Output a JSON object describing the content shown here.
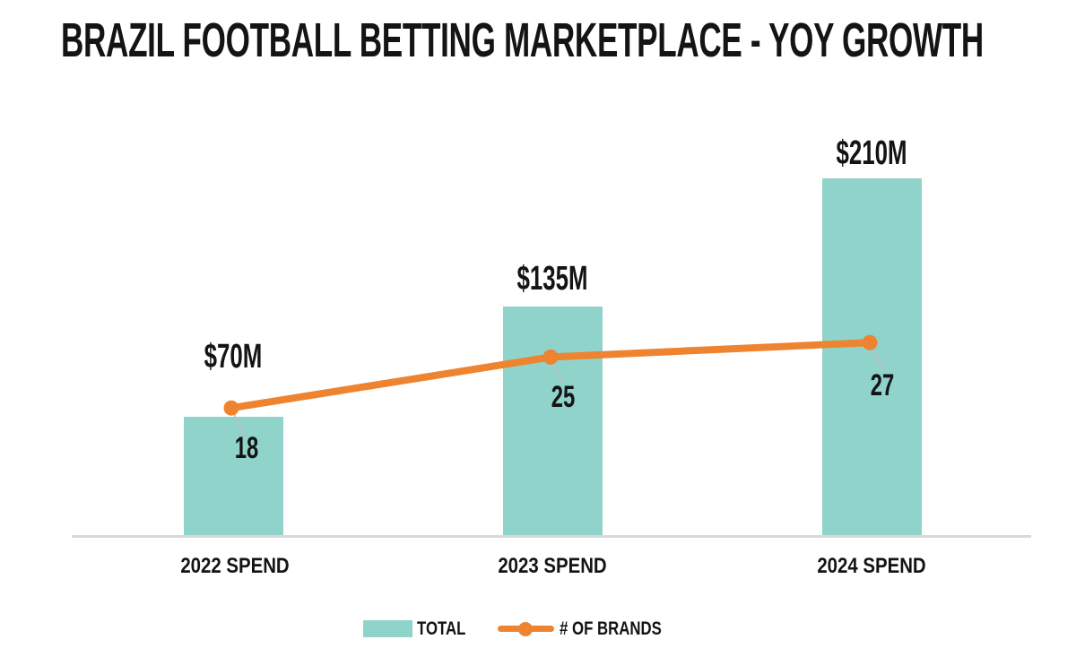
{
  "title": "BRAZIL FOOTBALL BETTING MARKETPLACE - YOY GROWTH",
  "colors": {
    "bar": "#90d3cb",
    "line": "#ee8330",
    "axis": "#d9d9d9",
    "leader": "#bfbfbf",
    "text": "#141414",
    "background": "#ffffff"
  },
  "legend": {
    "items": [
      {
        "label": "TOTAL",
        "marker": "bar-swatch"
      },
      {
        "label": "# OF BRANDS",
        "marker": "line-dot"
      }
    ]
  },
  "chart_data": {
    "type": "bar",
    "subtype": "bar-line-combo",
    "title": "BRAZIL FOOTBALL BETTING MARKETPLACE - YOY GROWTH",
    "categories": [
      "2022 SPEND",
      "2023 SPEND",
      "2024 SPEND"
    ],
    "series": [
      {
        "name": "TOTAL",
        "type": "bar",
        "values": [
          70,
          135,
          210
        ],
        "labels": [
          "$70M",
          "$135M",
          "$210M"
        ],
        "unit": "$M",
        "color": "#90d3cb"
      },
      {
        "name": "# OF BRANDS",
        "type": "line",
        "values": [
          18,
          25,
          27
        ],
        "labels": [
          "18",
          "25",
          "27"
        ],
        "color": "#ee8330"
      }
    ],
    "xlabel": "",
    "ylabel": "",
    "grid": false,
    "value_axis_visible": false,
    "legend_position": "bottom"
  }
}
